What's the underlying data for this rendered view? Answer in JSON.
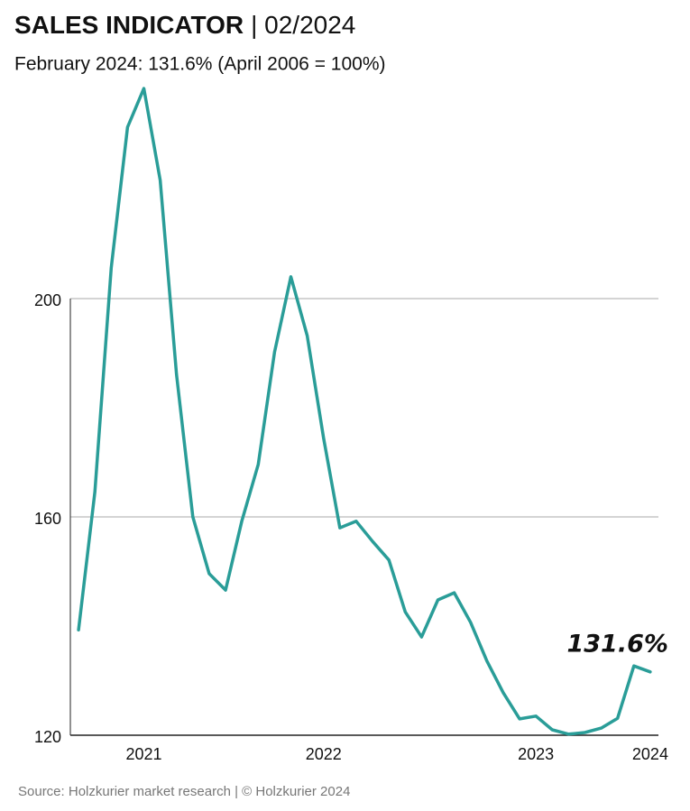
{
  "chart_data": {
    "type": "line",
    "title": "SALES INDICATOR",
    "title_suffix": "| 02/2024",
    "subtitle": "February 2024: 131.6% (April 2006 = 100%)",
    "annotation": "131.6%",
    "source": "Source: Holzkurier market research | © Holzkurier 2024",
    "categories": [
      null,
      null,
      null,
      null,
      "2021",
      null,
      null,
      null,
      null,
      null,
      null,
      null,
      null,
      null,
      null,
      "2022",
      null,
      null,
      null,
      null,
      null,
      null,
      null,
      null,
      null,
      null,
      null,
      null,
      "2023",
      null,
      null,
      null,
      null,
      null,
      null,
      "2024"
    ],
    "series": [
      {
        "color": "#2a9d98",
        "values": [
          139.3,
          164.6,
          205.6,
          231.4,
          238.5,
          221.7,
          186.1,
          160.0,
          149.6,
          146.6,
          159.3,
          169.6,
          190.2,
          204.0,
          193.2,
          174.5,
          158.0,
          159.2,
          155.5,
          152.1,
          142.6,
          138.0,
          144.8,
          146.1,
          140.7,
          133.6,
          127.8,
          123.0,
          123.5,
          121.0,
          120.2,
          120.5,
          121.3,
          123.1,
          132.7,
          131.6
        ]
      }
    ],
    "ylim": [
      120,
      240
    ],
    "yticks": [
      120,
      160,
      200
    ],
    "grid": true
  }
}
